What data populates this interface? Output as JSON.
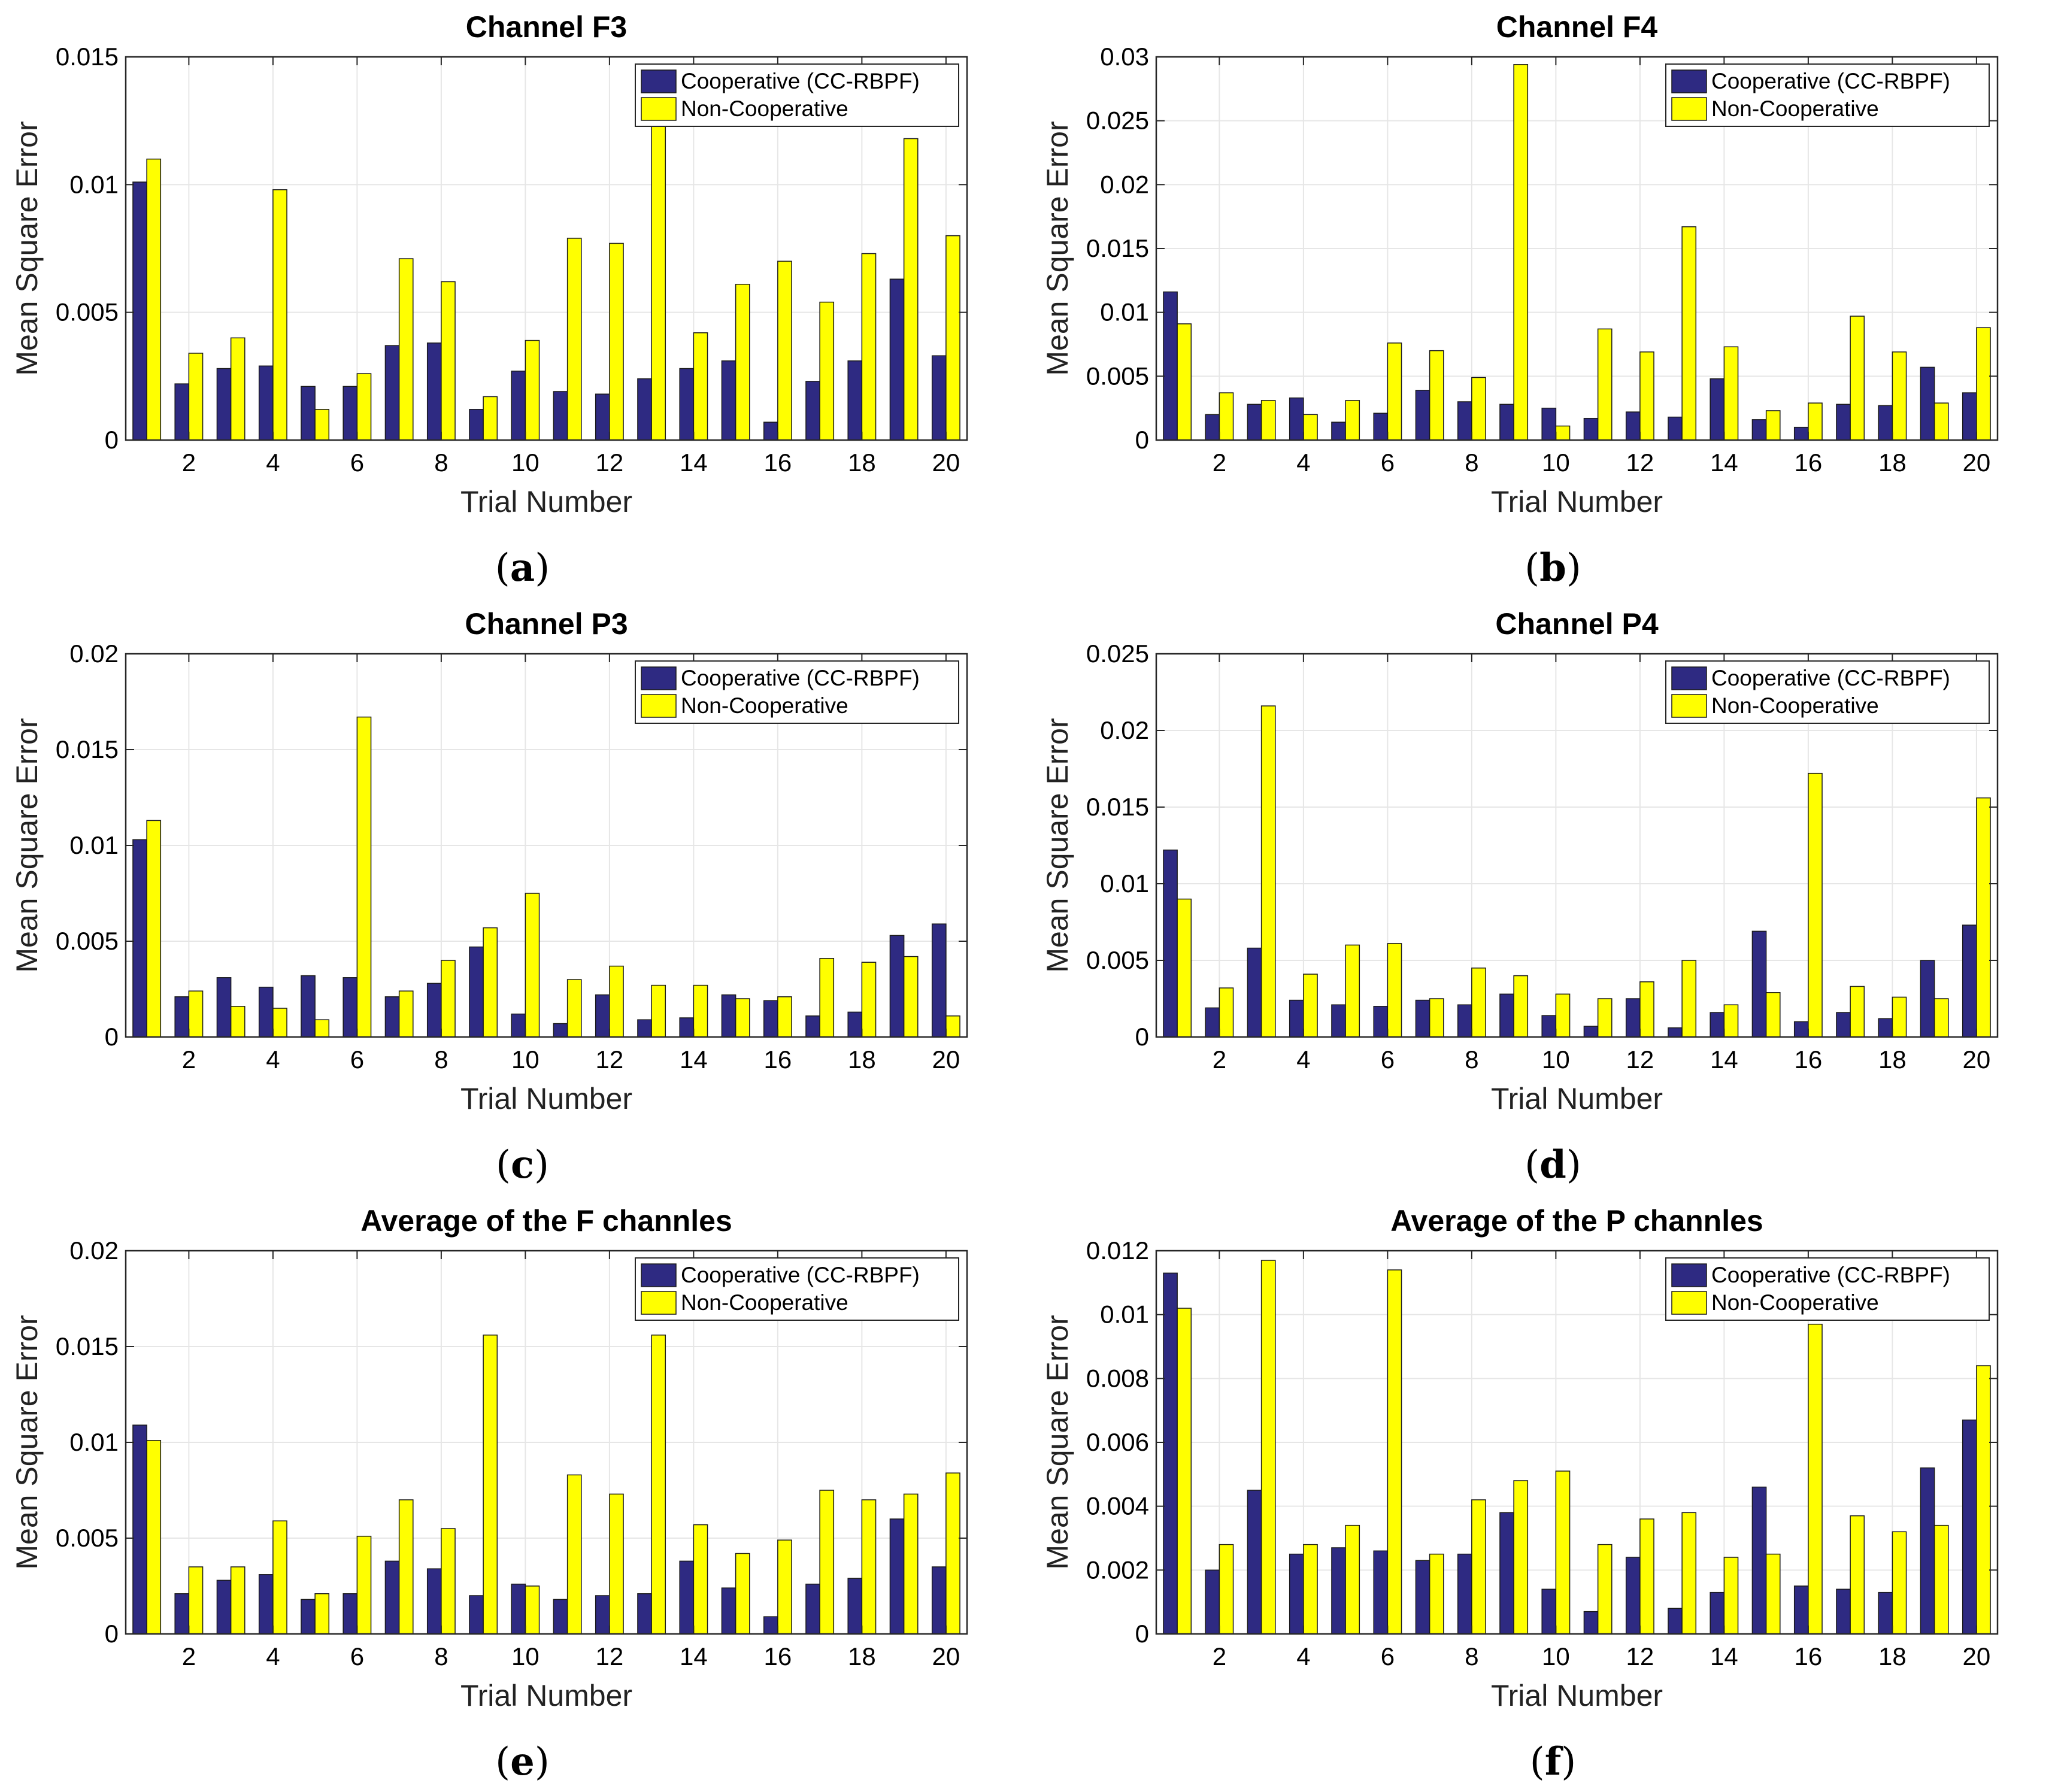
{
  "figure": {
    "xlabel": "Trial Number",
    "ylabel": "Mean Square Error",
    "series_names": [
      "Cooperative (CC-RBPF)",
      "Non-Cooperative"
    ],
    "series_colors": [
      "#2e2a82",
      "#ffff00"
    ]
  },
  "chart_data": [
    {
      "panel": "a",
      "type": "bar",
      "title": "Channel F3",
      "xlabel": "Trial Number",
      "ylabel": "Mean Square Error",
      "caption": "(a)",
      "caption_letter": "a",
      "categories": [
        1,
        2,
        3,
        4,
        5,
        6,
        7,
        8,
        9,
        10,
        11,
        12,
        13,
        14,
        15,
        16,
        17,
        18,
        19,
        20
      ],
      "xticks": [
        2,
        4,
        6,
        8,
        10,
        12,
        14,
        16,
        18,
        20
      ],
      "ylim": [
        0,
        0.015
      ],
      "yticks": [
        0,
        0.005,
        0.01,
        0.015
      ],
      "ytick_labels": [
        "0",
        "0.005",
        "0.01",
        "0.015"
      ],
      "legend_position": "top-right",
      "series": [
        {
          "name": "Cooperative (CC-RBPF)",
          "color": "#2e2a82",
          "values": [
            0.0101,
            0.0022,
            0.0028,
            0.0029,
            0.0021,
            0.0021,
            0.0037,
            0.0038,
            0.0012,
            0.0027,
            0.0019,
            0.0018,
            0.0024,
            0.0028,
            0.0031,
            0.0007,
            0.0023,
            0.0031,
            0.0063,
            0.0033
          ]
        },
        {
          "name": "Non-Cooperative",
          "color": "#ffff00",
          "values": [
            0.011,
            0.0034,
            0.004,
            0.0098,
            0.0012,
            0.0026,
            0.0071,
            0.0062,
            0.0017,
            0.0039,
            0.0079,
            0.0077,
            0.0145,
            0.0042,
            0.0061,
            0.007,
            0.0054,
            0.0073,
            0.0118,
            0.008
          ]
        }
      ]
    },
    {
      "panel": "b",
      "type": "bar",
      "title": "Channel F4",
      "xlabel": "Trial Number",
      "ylabel": "Mean Square Error",
      "caption": "(b)",
      "caption_letter": "b",
      "categories": [
        1,
        2,
        3,
        4,
        5,
        6,
        7,
        8,
        9,
        10,
        11,
        12,
        13,
        14,
        15,
        16,
        17,
        18,
        19,
        20
      ],
      "xticks": [
        2,
        4,
        6,
        8,
        10,
        12,
        14,
        16,
        18,
        20
      ],
      "ylim": [
        0,
        0.03
      ],
      "yticks": [
        0,
        0.005,
        0.01,
        0.015,
        0.02,
        0.025,
        0.03
      ],
      "ytick_labels": [
        "0",
        "0.005",
        "0.01",
        "0.015",
        "0.02",
        "0.025",
        "0.03"
      ],
      "legend_position": "top-right",
      "series": [
        {
          "name": "Cooperative (CC-RBPF)",
          "color": "#2e2a82",
          "values": [
            0.0116,
            0.002,
            0.0028,
            0.0033,
            0.0014,
            0.0021,
            0.0039,
            0.003,
            0.0028,
            0.0025,
            0.0017,
            0.0022,
            0.0018,
            0.0048,
            0.0016,
            0.001,
            0.0028,
            0.0027,
            0.0057,
            0.0037
          ]
        },
        {
          "name": "Non-Cooperative",
          "color": "#ffff00",
          "values": [
            0.0091,
            0.0037,
            0.0031,
            0.002,
            0.0031,
            0.0076,
            0.007,
            0.0049,
            0.0294,
            0.0011,
            0.0087,
            0.0069,
            0.0167,
            0.0073,
            0.0023,
            0.0029,
            0.0097,
            0.0069,
            0.0029,
            0.0088
          ]
        }
      ]
    },
    {
      "panel": "c",
      "type": "bar",
      "title": "Channel P3",
      "xlabel": "Trial Number",
      "ylabel": "Mean Square Error",
      "caption": "(c)",
      "caption_letter": "c",
      "categories": [
        1,
        2,
        3,
        4,
        5,
        6,
        7,
        8,
        9,
        10,
        11,
        12,
        13,
        14,
        15,
        16,
        17,
        18,
        19,
        20
      ],
      "xticks": [
        2,
        4,
        6,
        8,
        10,
        12,
        14,
        16,
        18,
        20
      ],
      "ylim": [
        0,
        0.02
      ],
      "yticks": [
        0,
        0.005,
        0.01,
        0.015,
        0.02
      ],
      "ytick_labels": [
        "0",
        "0.005",
        "0.01",
        "0.015",
        "0.02"
      ],
      "legend_position": "top-right",
      "series": [
        {
          "name": "Cooperative (CC-RBPF)",
          "color": "#2e2a82",
          "values": [
            0.0103,
            0.0021,
            0.0031,
            0.0026,
            0.0032,
            0.0031,
            0.0021,
            0.0028,
            0.0047,
            0.0012,
            0.0007,
            0.0022,
            0.0009,
            0.001,
            0.0022,
            0.0019,
            0.0011,
            0.0013,
            0.0053,
            0.0059
          ]
        },
        {
          "name": "Non-Cooperative",
          "color": "#ffff00",
          "values": [
            0.0113,
            0.0024,
            0.0016,
            0.0015,
            0.0009,
            0.0167,
            0.0024,
            0.004,
            0.0057,
            0.0075,
            0.003,
            0.0037,
            0.0027,
            0.0027,
            0.002,
            0.0021,
            0.0041,
            0.0039,
            0.0042,
            0.0011
          ]
        }
      ]
    },
    {
      "panel": "d",
      "type": "bar",
      "title": "Channel P4",
      "xlabel": "Trial Number",
      "ylabel": "Mean Square Error",
      "caption": "(d)",
      "caption_letter": "d",
      "categories": [
        1,
        2,
        3,
        4,
        5,
        6,
        7,
        8,
        9,
        10,
        11,
        12,
        13,
        14,
        15,
        16,
        17,
        18,
        19,
        20
      ],
      "xticks": [
        2,
        4,
        6,
        8,
        10,
        12,
        14,
        16,
        18,
        20
      ],
      "ylim": [
        0,
        0.025
      ],
      "yticks": [
        0,
        0.005,
        0.01,
        0.015,
        0.02,
        0.025
      ],
      "ytick_labels": [
        "0",
        "0.005",
        "0.01",
        "0.015",
        "0.02",
        "0.025"
      ],
      "legend_position": "top-right",
      "series": [
        {
          "name": "Cooperative (CC-RBPF)",
          "color": "#2e2a82",
          "values": [
            0.0122,
            0.0019,
            0.0058,
            0.0024,
            0.0021,
            0.002,
            0.0024,
            0.0021,
            0.0028,
            0.0014,
            0.0007,
            0.0025,
            0.0006,
            0.0016,
            0.0069,
            0.001,
            0.0016,
            0.0012,
            0.005,
            0.0073
          ]
        },
        {
          "name": "Non-Cooperative",
          "color": "#ffff00",
          "values": [
            0.009,
            0.0032,
            0.0216,
            0.0041,
            0.006,
            0.0061,
            0.0025,
            0.0045,
            0.004,
            0.0028,
            0.0025,
            0.0036,
            0.005,
            0.0021,
            0.0029,
            0.0172,
            0.0033,
            0.0026,
            0.0025,
            0.0156
          ]
        }
      ]
    },
    {
      "panel": "e",
      "type": "bar",
      "title": "Average of the F channles",
      "xlabel": "Trial Number",
      "ylabel": "Mean Square Error",
      "caption": "(e)",
      "caption_letter": "e",
      "categories": [
        1,
        2,
        3,
        4,
        5,
        6,
        7,
        8,
        9,
        10,
        11,
        12,
        13,
        14,
        15,
        16,
        17,
        18,
        19,
        20
      ],
      "xticks": [
        2,
        4,
        6,
        8,
        10,
        12,
        14,
        16,
        18,
        20
      ],
      "ylim": [
        0,
        0.02
      ],
      "yticks": [
        0,
        0.005,
        0.01,
        0.015,
        0.02
      ],
      "ytick_labels": [
        "0",
        "0.005",
        "0.01",
        "0.015",
        "0.02"
      ],
      "legend_position": "top-right",
      "series": [
        {
          "name": "Cooperative (CC-RBPF)",
          "color": "#2e2a82",
          "values": [
            0.0109,
            0.0021,
            0.0028,
            0.0031,
            0.0018,
            0.0021,
            0.0038,
            0.0034,
            0.002,
            0.0026,
            0.0018,
            0.002,
            0.0021,
            0.0038,
            0.0024,
            0.0009,
            0.0026,
            0.0029,
            0.006,
            0.0035
          ]
        },
        {
          "name": "Non-Cooperative",
          "color": "#ffff00",
          "values": [
            0.0101,
            0.0035,
            0.0035,
            0.0059,
            0.0021,
            0.0051,
            0.007,
            0.0055,
            0.0156,
            0.0025,
            0.0083,
            0.0073,
            0.0156,
            0.0057,
            0.0042,
            0.0049,
            0.0075,
            0.007,
            0.0073,
            0.0084
          ]
        }
      ]
    },
    {
      "panel": "f",
      "type": "bar",
      "title": "Average of the P channles",
      "xlabel": "Trial Number",
      "ylabel": "Mean Square Error",
      "caption": "(f)",
      "caption_letter": "f",
      "categories": [
        1,
        2,
        3,
        4,
        5,
        6,
        7,
        8,
        9,
        10,
        11,
        12,
        13,
        14,
        15,
        16,
        17,
        18,
        19,
        20
      ],
      "xticks": [
        2,
        4,
        6,
        8,
        10,
        12,
        14,
        16,
        18,
        20
      ],
      "ylim": [
        0,
        0.012
      ],
      "yticks": [
        0,
        0.002,
        0.004,
        0.006,
        0.008,
        0.01,
        0.012
      ],
      "ytick_labels": [
        "0",
        "0.002",
        "0.004",
        "0.006",
        "0.008",
        "0.01",
        "0.012"
      ],
      "legend_position": "top-right",
      "series": [
        {
          "name": "Cooperative (CC-RBPF)",
          "color": "#2e2a82",
          "values": [
            0.0113,
            0.002,
            0.0045,
            0.0025,
            0.0027,
            0.0026,
            0.0023,
            0.0025,
            0.0038,
            0.0014,
            0.0007,
            0.0024,
            0.0008,
            0.0013,
            0.0046,
            0.0015,
            0.0014,
            0.0013,
            0.0052,
            0.0067
          ]
        },
        {
          "name": "Non-Cooperative",
          "color": "#ffff00",
          "values": [
            0.0102,
            0.0028,
            0.0117,
            0.0028,
            0.0034,
            0.0114,
            0.0025,
            0.0042,
            0.0048,
            0.0051,
            0.0028,
            0.0036,
            0.0038,
            0.0024,
            0.0025,
            0.0097,
            0.0037,
            0.0032,
            0.0034,
            0.0084
          ]
        }
      ]
    }
  ]
}
